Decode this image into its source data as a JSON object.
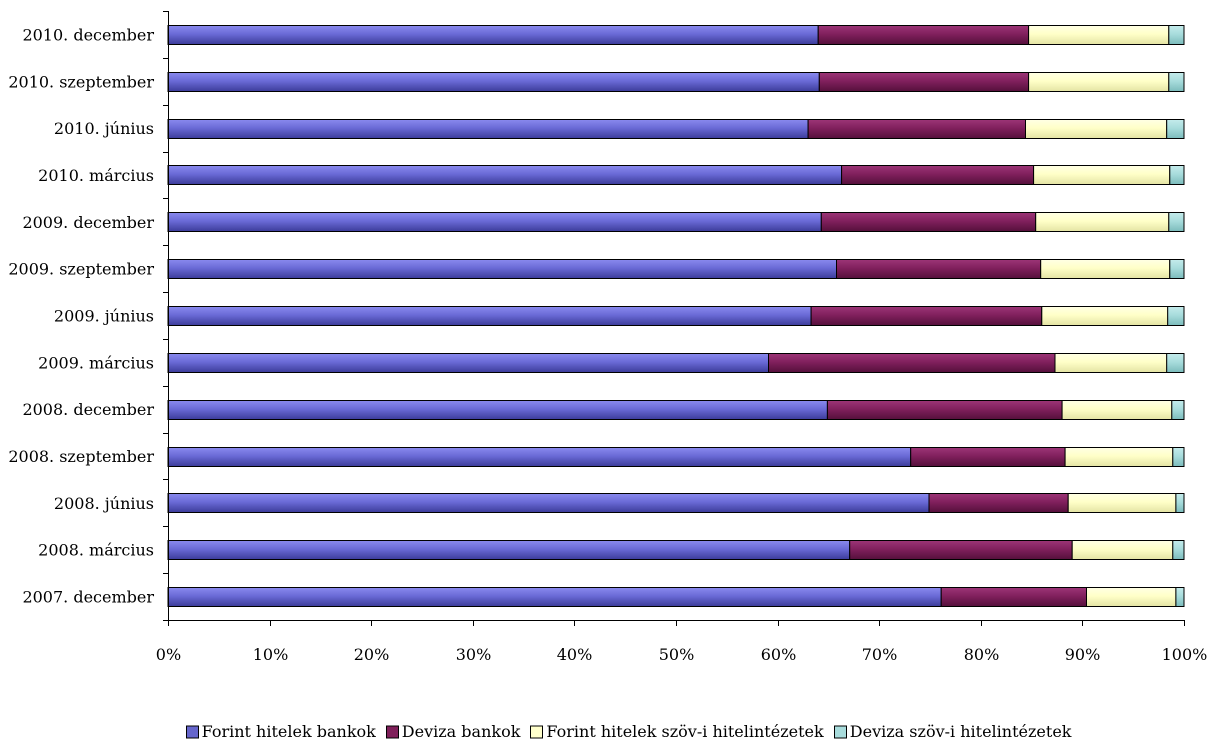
{
  "chart_data": {
    "type": "bar",
    "orientation": "horizontal",
    "stacking": "percent",
    "categories": [
      "2010. december",
      "2010. szeptember",
      "2010. június",
      "2010. március",
      "2009. december",
      "2009. szeptember",
      "2009. június",
      "2009. március",
      "2008. december",
      "2008. szeptember",
      "2008. június",
      "2008. március",
      "2007. december"
    ],
    "series": [
      {
        "name": "Forint hitelek bankok",
        "color": "#6666cc",
        "values": [
          64.0,
          64.1,
          63.0,
          66.3,
          64.3,
          65.8,
          63.3,
          59.1,
          64.9,
          73.1,
          74.9,
          67.1,
          76.1
        ]
      },
      {
        "name": "Deviza bankok",
        "color": "#7f1f5a",
        "values": [
          20.7,
          20.6,
          21.4,
          18.9,
          21.1,
          20.1,
          22.7,
          28.2,
          23.1,
          15.2,
          13.7,
          21.9,
          14.3
        ]
      },
      {
        "name": "Forint hitelek szöv-i hitelintézetek",
        "color": "#ffffcc",
        "values": [
          13.8,
          13.8,
          13.9,
          13.4,
          13.1,
          12.7,
          12.4,
          11.0,
          10.8,
          10.6,
          10.6,
          9.9,
          8.8
        ]
      },
      {
        "name": "Deviza szöv-i hitelintézetek",
        "color": "#a8dcdc",
        "values": [
          1.5,
          1.5,
          1.7,
          1.4,
          1.5,
          1.4,
          1.6,
          1.7,
          1.2,
          1.1,
          0.8,
          1.1,
          0.8
        ]
      }
    ],
    "xlim": [
      0,
      100
    ],
    "x_ticks": [
      "0%",
      "10%",
      "20%",
      "30%",
      "40%",
      "50%",
      "60%",
      "70%",
      "80%",
      "90%",
      "100%"
    ],
    "grid": false,
    "legend_position": "bottom"
  }
}
